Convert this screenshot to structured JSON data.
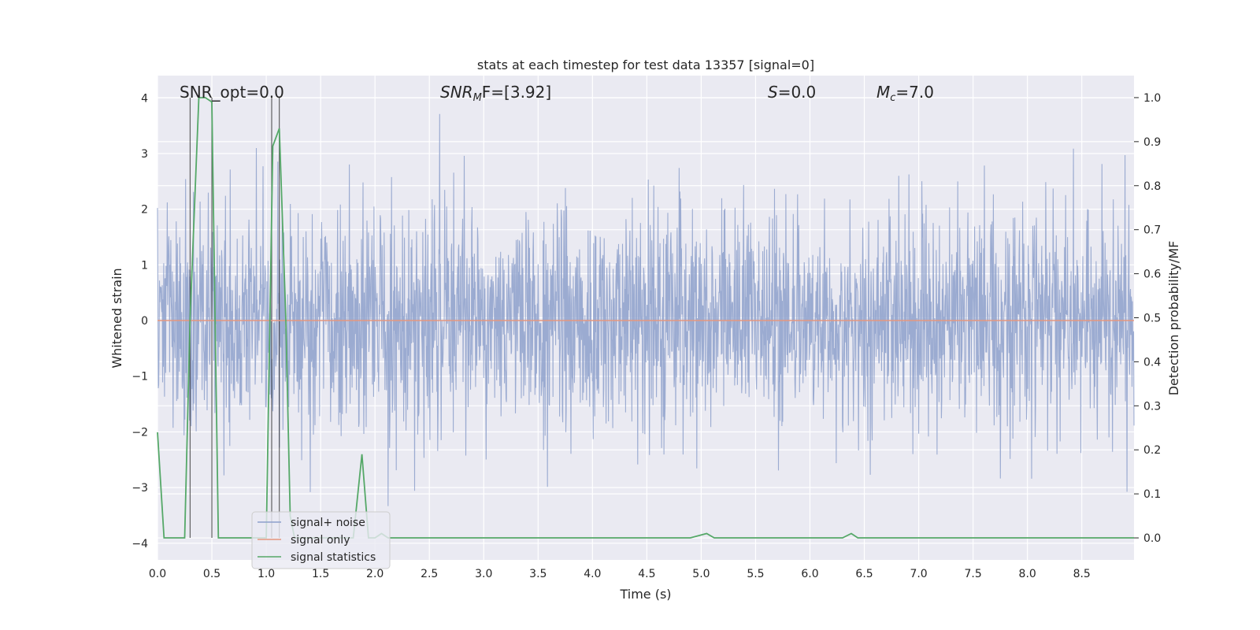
{
  "chart_data": {
    "type": "line",
    "title": "stats at each timestep for test data 13357 [signal=0]",
    "xlabel": "Time (s)",
    "ylabel_left": "Whitened strain",
    "ylabel_right": "Detection probability/MF",
    "xlim": [
      0.0,
      8.98
    ],
    "ylim_left": [
      -4.3,
      4.4
    ],
    "ylim_right": [
      -0.05,
      1.05
    ],
    "x_ticks": [
      "0.0",
      "0.5",
      "1.0",
      "1.5",
      "2.0",
      "2.5",
      "3.0",
      "3.5",
      "4.0",
      "4.5",
      "5.0",
      "5.5",
      "6.0",
      "6.5",
      "7.0",
      "7.5",
      "8.0",
      "8.5"
    ],
    "y_ticks_left": [
      "4",
      "3",
      "2",
      "1",
      "0",
      "−1",
      "−2",
      "−3",
      "−4"
    ],
    "y_ticks_right": [
      "1.0",
      "0.9",
      "0.8",
      "0.7",
      "0.6",
      "0.5",
      "0.4",
      "0.3",
      "0.2",
      "0.1",
      "0.0"
    ],
    "grid": true,
    "legend_position": "lower-left",
    "annotations": {
      "snr_opt": "SNR_opt=0.0",
      "snr_mf_base": "SNR",
      "snr_mf_sub": "M",
      "snr_mf_rest": "F=[3.92]",
      "s_base": "S",
      "s_rest": "=0.0",
      "mc_base": "M",
      "mc_sub": "c",
      "mc_rest": "=7.0"
    },
    "series": [
      {
        "name": "signal+ noise",
        "color": "#8da0cb",
        "description_values": {
          "mean": 0.0,
          "typical_range": [
            -1.5,
            1.7
          ],
          "max": 4.0,
          "min": -3.9
        }
      },
      {
        "name": "signal only",
        "color": "#e5967e",
        "values_constant": 0.0
      },
      {
        "name": "signal statistics",
        "color": "#55a868",
        "x": [
          0.0,
          0.06,
          0.12,
          0.2,
          0.25,
          0.3,
          0.38,
          0.44,
          0.5,
          0.56,
          0.62,
          0.7,
          0.8,
          0.9,
          0.95,
          1.0,
          1.06,
          1.12,
          1.18,
          1.22,
          1.26,
          1.3,
          1.5,
          1.7,
          1.8,
          1.88,
          1.94,
          2.0,
          2.06,
          2.12,
          2.2,
          3.0,
          4.0,
          4.5,
          4.9,
          5.05,
          5.12,
          5.5,
          6.0,
          6.3,
          6.38,
          6.44,
          7.0,
          8.0,
          8.98
        ],
        "y": [
          0.24,
          0.0,
          0.0,
          0.0,
          0.0,
          0.5,
          1.0,
          1.0,
          0.99,
          0.0,
          0.0,
          0.0,
          0.0,
          0.0,
          0.0,
          0.0,
          0.89,
          0.93,
          0.5,
          0.05,
          0.0,
          0.0,
          0.0,
          0.0,
          0.0,
          0.19,
          0.0,
          0.0,
          0.01,
          0.0,
          0.0,
          0.0,
          0.0,
          0.0,
          0.0,
          0.01,
          0.0,
          0.0,
          0.0,
          0.0,
          0.01,
          0.0,
          0.0,
          0.0,
          0.0
        ]
      }
    ],
    "vertical_lines_x": [
      0.3,
      0.5,
      1.05,
      1.12
    ]
  }
}
